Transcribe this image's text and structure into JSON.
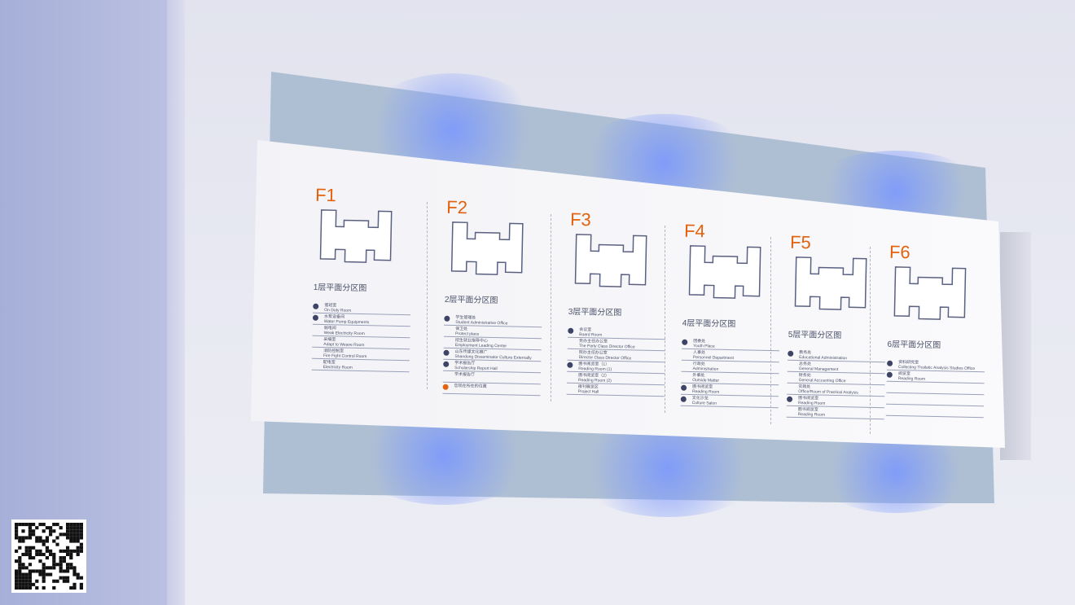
{
  "accent": "#e2620f",
  "floors": [
    {
      "label": "F1",
      "title": "1层平面分区图",
      "items": [
        {
          "cn": "值班室",
          "en": "On Duty Room",
          "marker": "dark"
        },
        {
          "cn": "水泵设备间",
          "en": "Water Pump Equipments",
          "marker": "dark"
        },
        {
          "cn": "弱电间",
          "en": "Weak Electricity Room",
          "marker": "none"
        },
        {
          "cn": "采编室",
          "en": "Adapt to Weave Room",
          "marker": "none"
        },
        {
          "cn": "消防控制室",
          "en": "Fire Fight Control Room",
          "marker": "none"
        },
        {
          "cn": "配电室",
          "en": "Electricity Room",
          "marker": "none"
        }
      ]
    },
    {
      "label": "F2",
      "title": "2层平面分区图",
      "items": [
        {
          "cn": "学生管理处",
          "en": "Student Administrative Office",
          "marker": "dark"
        },
        {
          "cn": "保卫处",
          "en": "Protect place",
          "marker": "none"
        },
        {
          "cn": "招生就业指导中心",
          "en": "Employment Leading Center",
          "marker": "none"
        },
        {
          "cn": "山东传媒文化推广",
          "en": "Shandong Disseminator Culture Externally",
          "marker": "dark"
        },
        {
          "cn": "学术报告厅",
          "en": "Scholarship Report Hall",
          "marker": "dark"
        },
        {
          "cn": "学术报告厅",
          "en": "",
          "marker": "none"
        },
        {
          "cn": "您现在所在的位置",
          "en": "",
          "marker": "orange"
        }
      ]
    },
    {
      "label": "F3",
      "title": "3层平面分区图",
      "items": [
        {
          "cn": "会议室",
          "en": "Board Room",
          "marker": "dark"
        },
        {
          "cn": "党办主任办公室",
          "en": "The Party Class Director Office",
          "marker": "none"
        },
        {
          "cn": "院办主任办公室",
          "en": "Director Class Director Office",
          "marker": "none"
        },
        {
          "cn": "图书阅览室（1）",
          "en": "Reading Room (1)",
          "marker": "dark"
        },
        {
          "cn": "图书阅览室（2）",
          "en": "Reading Room (2)",
          "marker": "none"
        },
        {
          "cn": "报刊展览区",
          "en": "Project Hall",
          "marker": "none"
        }
      ]
    },
    {
      "label": "F4",
      "title": "4层平面分区图",
      "items": [
        {
          "cn": "团委处",
          "en": "Youth Place",
          "marker": "dark"
        },
        {
          "cn": "人事处",
          "en": "Personnel Department",
          "marker": "none"
        },
        {
          "cn": "行政处",
          "en": "Administration",
          "marker": "none"
        },
        {
          "cn": "外事处",
          "en": "Outside Matter",
          "marker": "none"
        },
        {
          "cn": "图书阅览室",
          "en": "Reading Room",
          "marker": "dark"
        },
        {
          "cn": "文化沙龙",
          "en": "Culture Salon",
          "marker": "dark"
        }
      ]
    },
    {
      "label": "F5",
      "title": "5层平面分区图",
      "items": [
        {
          "cn": "教务处",
          "en": "Educational Administration",
          "marker": "dark"
        },
        {
          "cn": "总务处",
          "en": "General Management",
          "marker": "none"
        },
        {
          "cn": "财务处",
          "en": "General Accounting Office",
          "marker": "none"
        },
        {
          "cn": "实践处",
          "en": "Office/Room of Practical Analysis",
          "marker": "none"
        },
        {
          "cn": "图书阅览室",
          "en": "Reading Room",
          "marker": "dark"
        },
        {
          "cn": "图书阅览室",
          "en": "Reading Room",
          "marker": "none"
        }
      ]
    },
    {
      "label": "F6",
      "title": "6层平面分区图",
      "items": [
        {
          "cn": "资料研究室",
          "en": "Collecting Thoiletic Analysis Studies Office",
          "marker": "dark"
        },
        {
          "cn": "阅览室",
          "en": "Reading Room",
          "marker": "dark"
        },
        {
          "cn": "",
          "en": "",
          "marker": "none"
        },
        {
          "cn": "",
          "en": "",
          "marker": "none"
        },
        {
          "cn": "",
          "en": "",
          "marker": "none"
        }
      ]
    }
  ]
}
